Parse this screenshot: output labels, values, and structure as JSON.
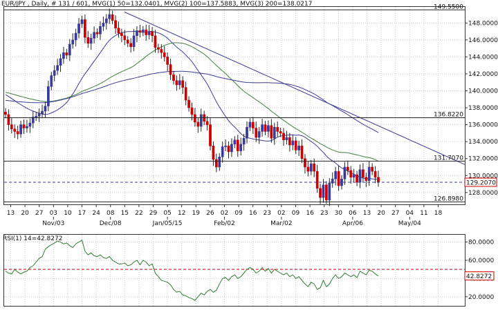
{
  "header": {
    "symbol_info": "EUR/JPY , Daily, # 131 / 601, MVG(1) 50=132.0401, MVG(2) 100=137.5883, MVG(3) 200=138.0217",
    "rsi_info": "RSI(1) 14=42.8272"
  },
  "chart_data": [
    {
      "type": "candlestick",
      "title": "EUR/JPY , Daily",
      "ylim": [
        126.6,
        149.9
      ],
      "y_ticks": [
        128,
        130,
        132,
        134,
        136,
        138,
        140,
        142,
        144,
        146,
        148
      ],
      "y_tick_labels": [
        "128.0000",
        "130.0000",
        "132.0000",
        "134.0000",
        "136.0000",
        "138.0000",
        "140.0000",
        "142.0000",
        "144.0000",
        "146.0000",
        "148.0000"
      ],
      "x_day_labels": [
        "13",
        "20",
        "27",
        "03",
        "10",
        "17",
        "24",
        "08",
        "15",
        "22",
        "29",
        "05",
        "12",
        "19",
        "26",
        "02",
        "09",
        "16",
        "23",
        "02",
        "09",
        "16",
        "23",
        "30",
        "06",
        "13",
        "20",
        "27",
        "04",
        "11",
        "18"
      ],
      "x_month_labels": [
        "Nov/03",
        "Dec/08",
        "Jan/05/15",
        "Feb/02",
        "Mar/02",
        "Apr/06",
        "May/04"
      ],
      "horizontal_levels": [
        {
          "value": 149.55,
          "label": "149.5500"
        },
        {
          "value": 136.822,
          "label": "136.8220"
        },
        {
          "value": 131.707,
          "label": "131.7070"
        },
        {
          "value": 126.898,
          "label": "126.8980"
        }
      ],
      "current_price": {
        "value": 129.207,
        "label": "129.2070",
        "color": "#cc0000"
      },
      "trendline": {
        "from": {
          "date": "Dec/08",
          "value": 149.3
        },
        "to": {
          "date": "May/18",
          "value": 131.3
        }
      },
      "moving_averages": [
        {
          "name": "MVG(1) 50",
          "last": 132.0401,
          "color": "#3a3a9a"
        },
        {
          "name": "MVG(2) 100",
          "last": 137.5883,
          "color": "#3f7f3f"
        },
        {
          "name": "MVG(3) 200",
          "last": 138.0217,
          "color": "#3a3a9a"
        }
      ],
      "ohlc_close": [
        137.2,
        136.0,
        135.5,
        135.2,
        134.9,
        136.0,
        135.6,
        135.8,
        136.2,
        136.9,
        137.0,
        137.3,
        137.6,
        138.2,
        140.5,
        141.8,
        142.4,
        143.0,
        143.8,
        144.5,
        144.2,
        145.5,
        146.0,
        146.8,
        147.9,
        148.4,
        146.3,
        145.6,
        146.2,
        146.9,
        146.7,
        147.6,
        148.0,
        148.5,
        149.0,
        148.3,
        147.4,
        146.8,
        146.5,
        146.0,
        145.6,
        145.2,
        146.5,
        147.1,
        146.9,
        147.2,
        146.6,
        147.0,
        146.5,
        145.1,
        144.9,
        144.5,
        144.0,
        143.1,
        141.9,
        141.2,
        140.7,
        141.2,
        140.4,
        138.9,
        138.0,
        137.2,
        136.3,
        135.8,
        137.2,
        136.4,
        136.0,
        133.5,
        131.9,
        131.0,
        132.2,
        133.4,
        133.5,
        132.8,
        133.7,
        134.2,
        132.9,
        133.7,
        134.4,
        135.7,
        136.3,
        135.6,
        134.5,
        135.2,
        136.0,
        135.2,
        135.9,
        134.4,
        135.7,
        135.2,
        135.0,
        134.2,
        134.5,
        133.6,
        134.1,
        133.0,
        133.5,
        132.0,
        131.0,
        130.5,
        131.4,
        130.5,
        128.5,
        127.4,
        128.9,
        127.1,
        129.1,
        129.6,
        130.5,
        128.8,
        129.6,
        131.0,
        130.6,
        129.8,
        130.1,
        129.2,
        130.7,
        129.8,
        129.4,
        131.0,
        130.5,
        129.8,
        129.2
      ],
      "ohlc_colors": {
        "up": "#3a3a9a",
        "down": "#cc0000"
      }
    },
    {
      "type": "line",
      "title": "RSI(1) 14",
      "last_value": 42.8272,
      "last_value_label": "42.8272",
      "ylim": [
        10,
        88
      ],
      "y_ticks": [
        20,
        40,
        60,
        80
      ],
      "y_tick_labels": [
        "20.0000",
        "40.0000",
        "60.0000",
        "80.0000"
      ],
      "levels": [
        {
          "value": 50,
          "color": "#cc0000"
        }
      ],
      "values": [
        48,
        46,
        45,
        50,
        47,
        45,
        47,
        48,
        52,
        54,
        58,
        62,
        64,
        72,
        75,
        77,
        79,
        81,
        80,
        78,
        79,
        76,
        74,
        78,
        80,
        82,
        70,
        66,
        68,
        65,
        64,
        66,
        63,
        62,
        64,
        60,
        58,
        56,
        56,
        57,
        54,
        55,
        58,
        60,
        55,
        60,
        58,
        54,
        56,
        46,
        42,
        38,
        37,
        36,
        33,
        28,
        25,
        26,
        22,
        21,
        19,
        18,
        16,
        20,
        24,
        22,
        26,
        28,
        25,
        27,
        34,
        40,
        41,
        38,
        42,
        44,
        40,
        42,
        46,
        50,
        52,
        50,
        46,
        48,
        52,
        48,
        51,
        46,
        50,
        48,
        46,
        44,
        46,
        42,
        44,
        40,
        42,
        38,
        34,
        31,
        36,
        34,
        28,
        30,
        38,
        31,
        34,
        40,
        44,
        40,
        42,
        46,
        44,
        42,
        44,
        41,
        48,
        46,
        44,
        49,
        48,
        45,
        42.8
      ]
    }
  ]
}
